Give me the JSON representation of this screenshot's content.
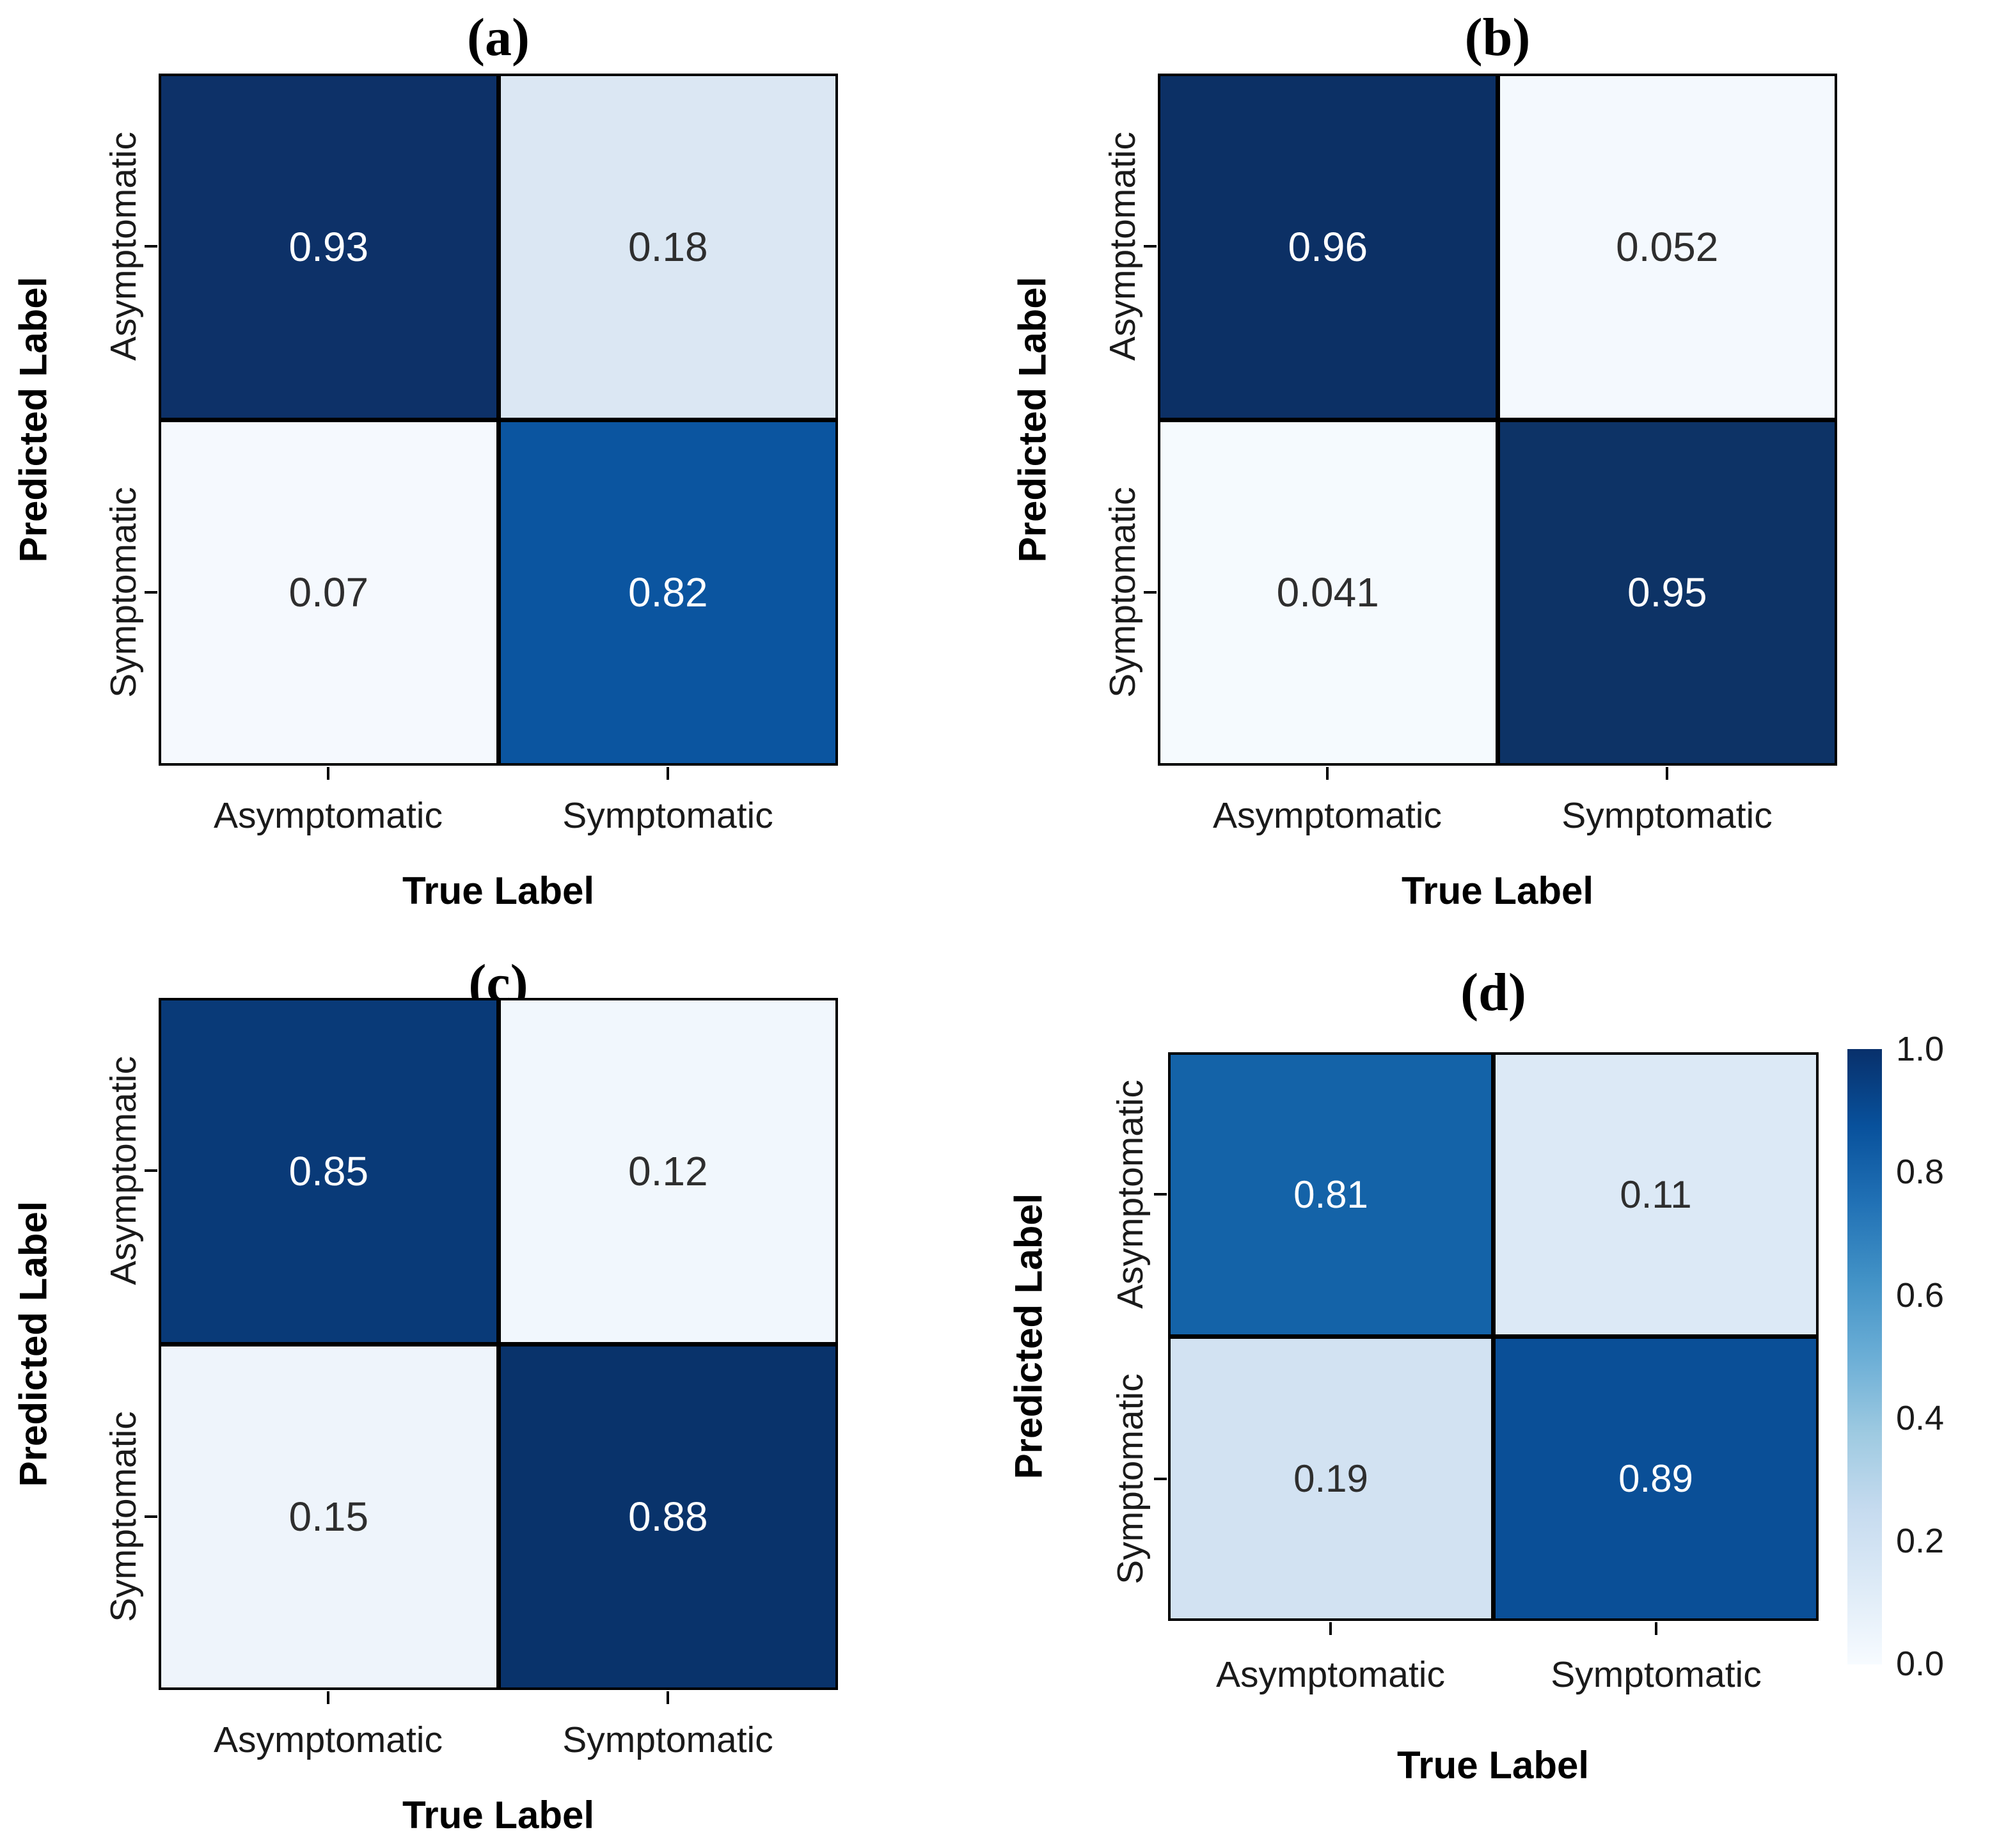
{
  "figure": {
    "xlabel": "True Label",
    "ylabel": "Predicted Label",
    "x_ticks": [
      "Asymptomatic",
      "Symptomatic"
    ],
    "y_ticks": [
      "Asymptomatic",
      "Symptomatic"
    ]
  },
  "colorbar": {
    "ticks": [
      "1.0",
      "0.8",
      "0.6",
      "0.4",
      "0.2",
      "0.0"
    ],
    "top_color": "#08306b",
    "bottom_color": "#f7fbff",
    "colormap": "Blues"
  },
  "panels": [
    {
      "title": "(a)",
      "cells": [
        {
          "value": "0.93",
          "bg": "#0d3168",
          "fg": "#ffffff"
        },
        {
          "value": "0.18",
          "bg": "#dbe7f3",
          "fg": "#2e2e2e"
        },
        {
          "value": "0.07",
          "bg": "#f5f9fe",
          "fg": "#2e2e2e"
        },
        {
          "value": "0.82",
          "bg": "#0b55a0",
          "fg": "#ffffff"
        }
      ]
    },
    {
      "title": "(b)",
      "cells": [
        {
          "value": "0.96",
          "bg": "#0c3065",
          "fg": "#ffffff"
        },
        {
          "value": "0.052",
          "bg": "#f4f9fe",
          "fg": "#2e2e2e"
        },
        {
          "value": "0.041",
          "bg": "#f5fafe",
          "fg": "#2e2e2e"
        },
        {
          "value": "0.95",
          "bg": "#0d3366",
          "fg": "#ffffff"
        }
      ]
    },
    {
      "title": "(c)",
      "cells": [
        {
          "value": "0.85",
          "bg": "#093a78",
          "fg": "#ffffff"
        },
        {
          "value": "0.12",
          "bg": "#f1f7fd",
          "fg": "#2e2e2e"
        },
        {
          "value": "0.15",
          "bg": "#eef4fb",
          "fg": "#2e2e2e"
        },
        {
          "value": "0.88",
          "bg": "#09336b",
          "fg": "#ffffff"
        }
      ]
    },
    {
      "title": "(d)",
      "cells": [
        {
          "value": "0.81",
          "bg": "#1463a8",
          "fg": "#ffffff"
        },
        {
          "value": "0.11",
          "bg": "#dce9f6",
          "fg": "#2e2e2e"
        },
        {
          "value": "0.19",
          "bg": "#d2e2f2",
          "fg": "#2e2e2e"
        },
        {
          "value": "0.89",
          "bg": "#0a4f97",
          "fg": "#ffffff"
        }
      ]
    }
  ],
  "chart_data": [
    {
      "type": "heatmap",
      "title": "(a)",
      "xlabel": "True Label",
      "ylabel": "Predicted Label",
      "x_categories": [
        "Asymptomatic",
        "Symptomatic"
      ],
      "y_categories": [
        "Asymptomatic",
        "Symptomatic"
      ],
      "values": [
        [
          0.93,
          0.18
        ],
        [
          0.07,
          0.82
        ]
      ],
      "colormap": "Blues",
      "vmin": 0.0,
      "vmax": 1.0,
      "colorbar": false
    },
    {
      "type": "heatmap",
      "title": "(b)",
      "xlabel": "True Label",
      "ylabel": "Predicted Label",
      "x_categories": [
        "Asymptomatic",
        "Symptomatic"
      ],
      "y_categories": [
        "Asymptomatic",
        "Symptomatic"
      ],
      "values": [
        [
          0.96,
          0.052
        ],
        [
          0.041,
          0.95
        ]
      ],
      "colormap": "Blues",
      "vmin": 0.0,
      "vmax": 1.0,
      "colorbar": false
    },
    {
      "type": "heatmap",
      "title": "(c)",
      "xlabel": "True Label",
      "ylabel": "Predicted Label",
      "x_categories": [
        "Asymptomatic",
        "Symptomatic"
      ],
      "y_categories": [
        "Asymptomatic",
        "Symptomatic"
      ],
      "values": [
        [
          0.85,
          0.12
        ],
        [
          0.15,
          0.88
        ]
      ],
      "colormap": "Blues",
      "vmin": 0.0,
      "vmax": 1.0,
      "colorbar": false
    },
    {
      "type": "heatmap",
      "title": "(d)",
      "xlabel": "True Label",
      "ylabel": "Predicted Label",
      "x_categories": [
        "Asymptomatic",
        "Symptomatic"
      ],
      "y_categories": [
        "Asymptomatic",
        "Symptomatic"
      ],
      "values": [
        [
          0.81,
          0.11
        ],
        [
          0.19,
          0.89
        ]
      ],
      "colormap": "Blues",
      "vmin": 0.0,
      "vmax": 1.0,
      "colorbar": true,
      "colorbar_ticks": [
        1.0,
        0.8,
        0.6,
        0.4,
        0.2,
        0.0
      ]
    }
  ]
}
